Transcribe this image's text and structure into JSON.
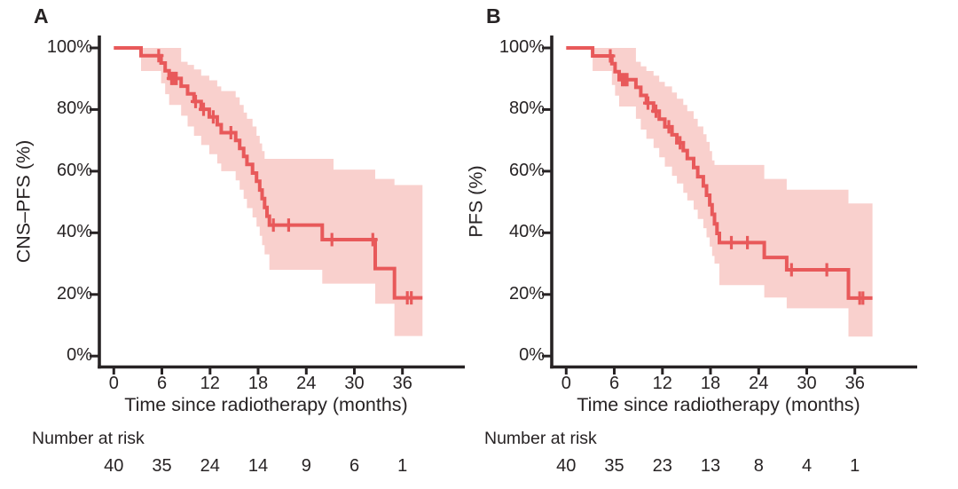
{
  "figure": {
    "background": "#ffffff",
    "text_color": "#272324",
    "axis_color": "#272324",
    "curve_color": "#e8595a",
    "band_color": "#f9d0cd"
  },
  "chart_data": [
    {
      "type": "line",
      "subtype": "kaplan-meier-step",
      "panel_label": "A",
      "ylabel": "CNS–PFS (%)",
      "xlabel": "Time since radiotherapy (months)",
      "risk_label": "Number at risk",
      "x_ticks": [
        0,
        6,
        12,
        18,
        24,
        30,
        36
      ],
      "y_ticks": [
        "100%",
        "80%",
        "60%",
        "40%",
        "20%",
        "0%"
      ],
      "y_tick_values": [
        100,
        80,
        60,
        40,
        20,
        0
      ],
      "xlim": [
        0,
        38.5
      ],
      "ylim": [
        0,
        100
      ],
      "grid": false,
      "legend": "none",
      "t_end": 38.5,
      "steps": [
        [
          0,
          100
        ],
        [
          3.4,
          97.5
        ],
        [
          5.9,
          95.1
        ],
        [
          6.4,
          92.6
        ],
        [
          6.9,
          90.1
        ],
        [
          8.4,
          87.6
        ],
        [
          9.2,
          85.1
        ],
        [
          10.0,
          82.6
        ],
        [
          10.9,
          80.1
        ],
        [
          11.9,
          77.6
        ],
        [
          12.9,
          75.1
        ],
        [
          13.4,
          72.5
        ],
        [
          15.2,
          70.0
        ],
        [
          15.7,
          67.4
        ],
        [
          16.2,
          64.8
        ],
        [
          16.6,
          62.2
        ],
        [
          17.3,
          59.4
        ],
        [
          17.8,
          56.7
        ],
        [
          18.2,
          53.9
        ],
        [
          18.5,
          51.1
        ],
        [
          18.8,
          48.2
        ],
        [
          19.1,
          45.4
        ],
        [
          19.4,
          42.5
        ],
        [
          26.0,
          37.8
        ],
        [
          32.6,
          28.4
        ],
        [
          35.0,
          18.9
        ]
      ],
      "censors": [
        [
          5.6,
          97.5
        ],
        [
          7.2,
          90.1
        ],
        [
          7.5,
          90.1
        ],
        [
          7.8,
          90.1
        ],
        [
          10.2,
          82.6
        ],
        [
          11.2,
          80.1
        ],
        [
          12.4,
          77.6
        ],
        [
          14.6,
          72.5
        ],
        [
          19.9,
          42.5
        ],
        [
          21.8,
          42.5
        ],
        [
          27.2,
          37.8
        ],
        [
          32.3,
          37.8
        ],
        [
          36.6,
          18.9
        ],
        [
          37.1,
          18.9
        ]
      ],
      "band": [
        [
          3.4,
          92.5,
          100
        ],
        [
          5.9,
          88.5,
          100
        ],
        [
          6.4,
          85.0,
          100
        ],
        [
          6.9,
          81.5,
          100
        ],
        [
          8.4,
          78.0,
          95.5
        ],
        [
          9.2,
          74.5,
          94.5
        ],
        [
          10.0,
          71.5,
          93.0
        ],
        [
          10.9,
          68.5,
          91.0
        ],
        [
          11.9,
          65.5,
          89.5
        ],
        [
          12.9,
          62.5,
          87.5
        ],
        [
          13.4,
          60.0,
          86.0
        ],
        [
          15.2,
          57.0,
          84.0
        ],
        [
          15.7,
          54.0,
          81.5
        ],
        [
          16.2,
          51.0,
          79.0
        ],
        [
          16.6,
          48.0,
          77.0
        ],
        [
          17.3,
          45.0,
          74.5
        ],
        [
          17.8,
          42.0,
          71.5
        ],
        [
          18.2,
          39.0,
          69.0
        ],
        [
          18.5,
          36.0,
          66.5
        ],
        [
          18.8,
          33.0,
          64.0
        ],
        [
          19.4,
          28.0,
          64.0
        ],
        [
          26.0,
          23.5,
          64.0
        ],
        [
          27.4,
          23.5,
          60.5
        ],
        [
          32.6,
          17.0,
          57.5
        ],
        [
          35.0,
          6.5,
          55.5
        ]
      ],
      "risk_numbers": [
        40,
        35,
        24,
        14,
        9,
        6,
        1
      ]
    },
    {
      "type": "line",
      "subtype": "kaplan-meier-step",
      "panel_label": "B",
      "ylabel": "PFS (%)",
      "xlabel": "Time since radiotherapy (months)",
      "risk_label": "Number at risk",
      "x_ticks": [
        0,
        6,
        12,
        18,
        24,
        30,
        36
      ],
      "y_ticks": [
        "100%",
        "80%",
        "60%",
        "40%",
        "20%",
        "0%"
      ],
      "y_tick_values": [
        100,
        80,
        60,
        40,
        20,
        0
      ],
      "xlim": [
        0,
        38.2
      ],
      "ylim": [
        0,
        100
      ],
      "grid": false,
      "legend": "none",
      "t_end": 38.2,
      "steps": [
        [
          0,
          100
        ],
        [
          3.3,
          97.4
        ],
        [
          5.7,
          94.9
        ],
        [
          6.1,
          92.3
        ],
        [
          6.6,
          89.7
        ],
        [
          8.7,
          87.2
        ],
        [
          9.3,
          84.6
        ],
        [
          10.0,
          82.1
        ],
        [
          10.9,
          79.5
        ],
        [
          11.6,
          76.9
        ],
        [
          12.3,
          74.4
        ],
        [
          13.2,
          71.8
        ],
        [
          13.8,
          69.2
        ],
        [
          14.6,
          66.7
        ],
        [
          15.1,
          64.1
        ],
        [
          15.9,
          61.2
        ],
        [
          16.4,
          58.2
        ],
        [
          17.1,
          55.2
        ],
        [
          17.5,
          52.2
        ],
        [
          17.9,
          49.1
        ],
        [
          18.2,
          46.0
        ],
        [
          18.5,
          42.9
        ],
        [
          18.8,
          39.8
        ],
        [
          19.1,
          36.8
        ],
        [
          24.7,
          32.0
        ],
        [
          27.5,
          28.0
        ],
        [
          35.2,
          18.8
        ]
      ],
      "censors": [
        [
          5.5,
          97.4
        ],
        [
          7.0,
          89.7
        ],
        [
          7.3,
          89.7
        ],
        [
          7.6,
          89.7
        ],
        [
          10.2,
          82.1
        ],
        [
          11.2,
          79.5
        ],
        [
          12.8,
          74.4
        ],
        [
          14.2,
          69.2
        ],
        [
          20.6,
          36.8
        ],
        [
          22.6,
          36.8
        ],
        [
          28.1,
          28.0
        ],
        [
          32.5,
          28.0
        ],
        [
          36.6,
          18.8
        ],
        [
          37.0,
          18.8
        ]
      ],
      "band": [
        [
          3.3,
          92.5,
          100
        ],
        [
          5.7,
          88.0,
          100
        ],
        [
          6.1,
          84.5,
          100
        ],
        [
          6.6,
          81.0,
          100
        ],
        [
          8.7,
          77.0,
          95.5
        ],
        [
          9.3,
          73.5,
          94.0
        ],
        [
          10.0,
          70.5,
          92.5
        ],
        [
          10.9,
          67.5,
          91.0
        ],
        [
          11.6,
          64.5,
          89.0
        ],
        [
          12.3,
          61.5,
          87.5
        ],
        [
          13.2,
          58.5,
          85.5
        ],
        [
          13.8,
          56.0,
          83.5
        ],
        [
          14.6,
          53.0,
          81.5
        ],
        [
          15.1,
          50.5,
          79.5
        ],
        [
          15.9,
          47.5,
          77.0
        ],
        [
          16.4,
          44.5,
          74.5
        ],
        [
          17.1,
          41.5,
          72.0
        ],
        [
          17.5,
          38.5,
          69.5
        ],
        [
          17.9,
          35.5,
          66.5
        ],
        [
          18.2,
          32.5,
          63.5
        ],
        [
          18.5,
          30.0,
          62.0
        ],
        [
          19.1,
          23.0,
          62.0
        ],
        [
          24.7,
          19.0,
          57.5
        ],
        [
          27.5,
          15.5,
          54.0
        ],
        [
          35.2,
          6.3,
          49.5
        ]
      ],
      "risk_numbers": [
        40,
        35,
        23,
        13,
        8,
        4,
        1
      ]
    }
  ]
}
